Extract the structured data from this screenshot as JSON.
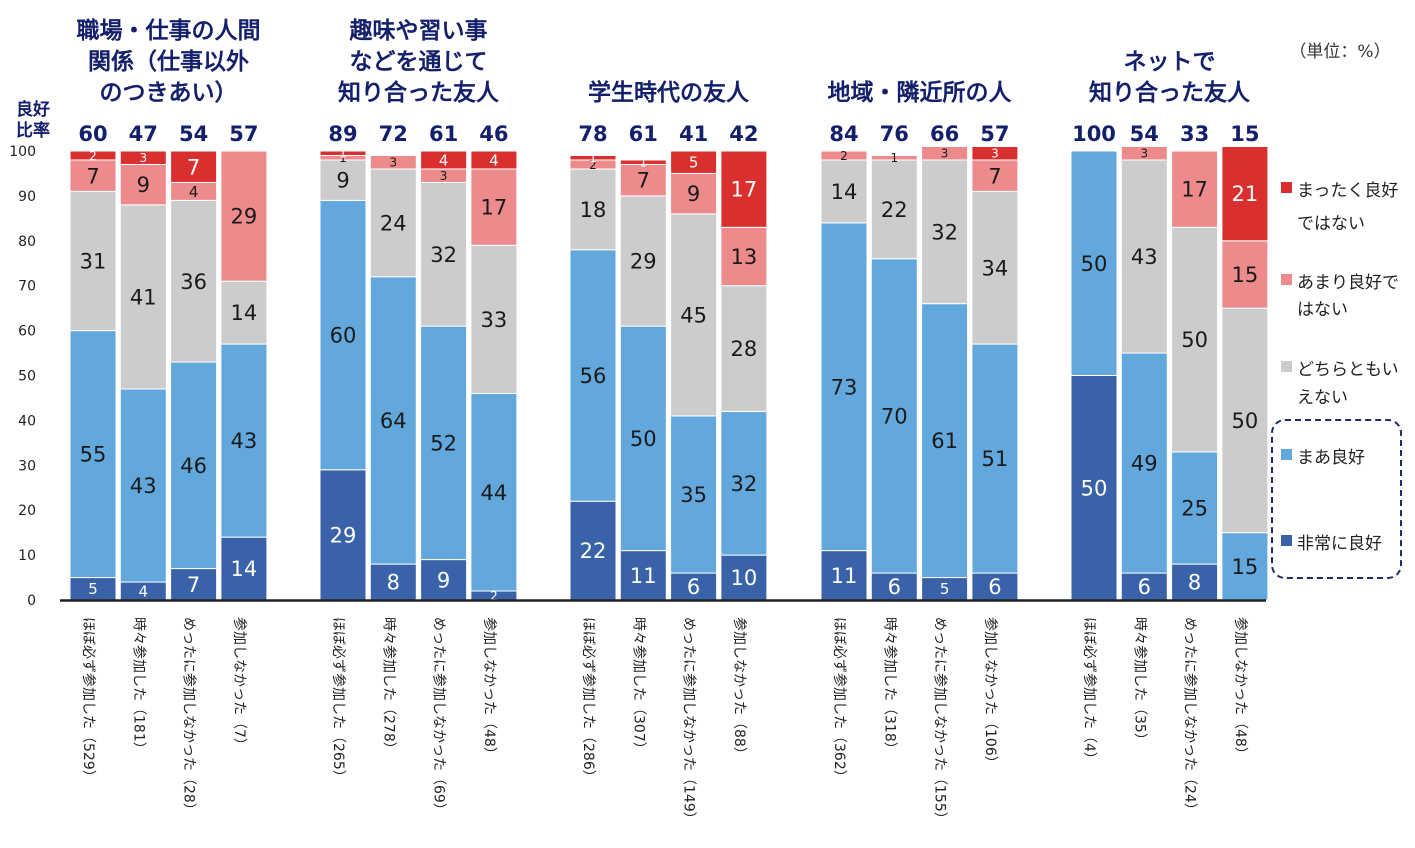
{
  "unit_note": "（単位：%）",
  "ratio_label_lines": [
    "良好",
    "比率"
  ],
  "colors": {
    "very_good": "#3a62a8",
    "good": "#62a8dc",
    "neutral": "#cccccc",
    "not_good": "#ec8a8c",
    "very_bad": "#d9302f",
    "title": "#14206b",
    "axis": "#222222"
  },
  "chart_data": {
    "type": "bar",
    "stacked": true,
    "ylim": [
      0,
      100
    ],
    "yticks": [
      0,
      10,
      20,
      30,
      40,
      50,
      60,
      70,
      80,
      90,
      100
    ],
    "legend": [
      {
        "key": "very_bad",
        "lines": [
          "まったく良好",
          "ではない"
        ]
      },
      {
        "key": "not_good",
        "lines": [
          "あまり良好で",
          "はない"
        ]
      },
      {
        "key": "neutral",
        "lines": [
          "どちらともい",
          "えない"
        ]
      },
      {
        "key": "good",
        "lines": [
          "まあ良好"
        ]
      },
      {
        "key": "very_good",
        "lines": [
          "非常に良好"
        ]
      }
    ],
    "series_order": [
      "very_good",
      "good",
      "neutral",
      "not_good",
      "very_bad"
    ],
    "groups": [
      {
        "title_lines": [
          "職場・仕事の人間",
          "関係（仕事以外",
          "のつきあい）"
        ],
        "bars": [
          {
            "label": "ほぼ必ず参加した（529）",
            "ratio": "60",
            "values": {
              "very_good": 5,
              "good": 55,
              "neutral": 31,
              "not_good": 7,
              "very_bad": 2
            }
          },
          {
            "label": "時々参加した（181）",
            "ratio": "47",
            "values": {
              "very_good": 4,
              "good": 43,
              "neutral": 41,
              "not_good": 9,
              "very_bad": 3
            }
          },
          {
            "label": "めったに参加しなかった（28）",
            "ratio": "54",
            "values": {
              "very_good": 7,
              "good": 46,
              "neutral": 36,
              "not_good": 4,
              "very_bad": 7
            }
          },
          {
            "label": "参加しなかった（7）",
            "ratio": "57",
            "values": {
              "very_good": 14,
              "good": 43,
              "neutral": 14,
              "not_good": 29,
              "very_bad": 0
            }
          }
        ]
      },
      {
        "title_lines": [
          "趣味や習い事",
          "などを通じて",
          "知り合った友人"
        ],
        "bars": [
          {
            "label": "ほぼ必ず参加した（265）",
            "ratio": "89",
            "values": {
              "very_good": 29,
              "good": 60,
              "neutral": 9,
              "not_good": 1,
              "very_bad": 1
            }
          },
          {
            "label": "時々参加した（278）",
            "ratio": "72",
            "values": {
              "very_good": 8,
              "good": 64,
              "neutral": 24,
              "not_good": 3,
              "very_bad": 0
            }
          },
          {
            "label": "めったに参加しなかった（69）",
            "ratio": "61",
            "values": {
              "very_good": 9,
              "good": 52,
              "neutral": 32,
              "not_good": 3,
              "very_bad": 4
            }
          },
          {
            "label": "参加しなかった（48）",
            "ratio": "46",
            "values": {
              "very_good": 2,
              "good": 44,
              "neutral": 33,
              "not_good": 17,
              "very_bad": 4
            }
          }
        ]
      },
      {
        "title_lines": [
          "学生時代の友人"
        ],
        "bars": [
          {
            "label": "ほぼ必ず参加した（286）",
            "ratio": "78",
            "values": {
              "very_good": 22,
              "good": 56,
              "neutral": 18,
              "not_good": 2,
              "very_bad": 1
            }
          },
          {
            "label": "時々参加した（307）",
            "ratio": "61",
            "values": {
              "very_good": 11,
              "good": 50,
              "neutral": 29,
              "not_good": 7,
              "very_bad": 1
            }
          },
          {
            "label": "めったに参加しなかった（149）",
            "ratio": "41",
            "values": {
              "very_good": 6,
              "good": 35,
              "neutral": 45,
              "not_good": 9,
              "very_bad": 5
            }
          },
          {
            "label": "参加しなかった（88）",
            "ratio": "42",
            "values": {
              "very_good": 10,
              "good": 32,
              "neutral": 28,
              "not_good": 13,
              "very_bad": 17
            }
          }
        ]
      },
      {
        "title_lines": [
          "地域・隣近所の人"
        ],
        "bars": [
          {
            "label": "ほぼ必ず参加した（362）",
            "ratio": "84",
            "values": {
              "very_good": 11,
              "good": 73,
              "neutral": 14,
              "not_good": 2,
              "very_bad": 0
            }
          },
          {
            "label": "時々参加した（318）",
            "ratio": "76",
            "values": {
              "very_good": 6,
              "good": 70,
              "neutral": 22,
              "not_good": 1,
              "very_bad": 0
            }
          },
          {
            "label": "めったに参加しなかった（155）",
            "ratio": "66",
            "values": {
              "very_good": 5,
              "good": 61,
              "neutral": 32,
              "not_good": 3,
              "very_bad": 0
            }
          },
          {
            "label": "参加しなかった（106）",
            "ratio": "57",
            "values": {
              "very_good": 6,
              "good": 51,
              "neutral": 34,
              "not_good": 7,
              "very_bad": 3
            }
          }
        ]
      },
      {
        "title_lines": [
          "ネットで",
          "知り合った友人"
        ],
        "bars": [
          {
            "label": "ほぼ必ず参加した（4）",
            "ratio": "100",
            "values": {
              "very_good": 50,
              "good": 50,
              "neutral": 0,
              "not_good": 0,
              "very_bad": 0
            }
          },
          {
            "label": "時々参加した（35）",
            "ratio": "54",
            "values": {
              "very_good": 6,
              "good": 49,
              "neutral": 43,
              "not_good": 3,
              "very_bad": 0
            }
          },
          {
            "label": "めったに参加しなかった（24）",
            "ratio": "33",
            "values": {
              "very_good": 8,
              "good": 25,
              "neutral": 50,
              "not_good": 17,
              "very_bad": 0
            }
          },
          {
            "label": "参加しなかった（48）",
            "ratio": "15",
            "values": {
              "very_good": 0,
              "good": 15,
              "neutral": 50,
              "not_good": 15,
              "very_bad": 21
            }
          }
        ]
      }
    ]
  }
}
